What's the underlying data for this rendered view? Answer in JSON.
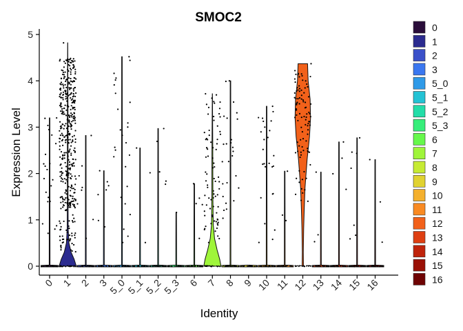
{
  "chart_data": {
    "type": "violin",
    "title": "SMOC2",
    "xlabel": "Identity",
    "ylabel": "Expression Level",
    "ylim": [
      0,
      5
    ],
    "yticks": [
      0,
      1,
      2,
      3,
      4,
      5
    ],
    "categories": [
      "0",
      "1",
      "2",
      "3",
      "5_0",
      "5_1",
      "5_2",
      "5_3",
      "6",
      "7",
      "8",
      "9",
      "10",
      "11",
      "12",
      "13",
      "14",
      "15",
      "16"
    ],
    "colors": [
      "#2a0d3a",
      "#2b2b8f",
      "#3a50c9",
      "#3a77f0",
      "#2f9ae8",
      "#23c2d4",
      "#22dda8",
      "#36ee7a",
      "#66f84b",
      "#9ff53a",
      "#c6eb33",
      "#e0d231",
      "#f4b02d",
      "#f98a22",
      "#f2611a",
      "#de3f12",
      "#bf230b",
      "#9a1006",
      "#6e0303"
    ],
    "max_values": [
      3.2,
      4.82,
      2.82,
      2.06,
      4.52,
      2.55,
      2.97,
      1.16,
      1.78,
      3.72,
      4.0,
      0.0,
      3.45,
      2.05,
      4.37,
      2.03,
      2.68,
      2.77,
      2.3
    ],
    "legend": {
      "position": "right",
      "entries": [
        "0",
        "1",
        "2",
        "3",
        "5_0",
        "5_1",
        "5_2",
        "5_3",
        "6",
        "7",
        "8",
        "9",
        "10",
        "11",
        "12",
        "13",
        "14",
        "15",
        "16"
      ]
    },
    "grid": false
  }
}
